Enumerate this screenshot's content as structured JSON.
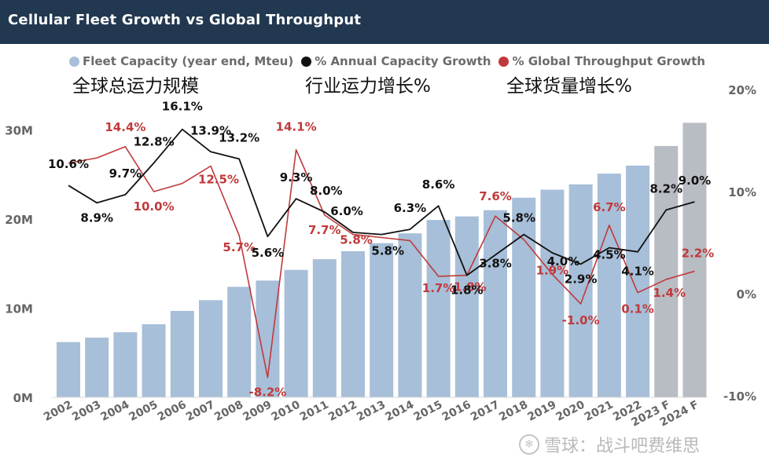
{
  "header": {
    "title": "Cellular Fleet Growth vs Global Throughput"
  },
  "legend": [
    {
      "label": "Fleet Capacity (year end, Mteu)",
      "color": "#a7bfd8"
    },
    {
      "label": "% Annual Capacity Growth",
      "color": "#111111"
    },
    {
      "label": "% Global Throughput Growth",
      "color": "#c0393b"
    }
  ],
  "annotations_cn": {
    "fleet": "全球总运力规模",
    "capacity_growth": "行业运力增长%",
    "throughput_growth": "全球货量增长%"
  },
  "watermark": {
    "text": "雪球：战斗吧费维思"
  },
  "colors": {
    "bar": "#a7bfd8",
    "bar_forecast": "#b8bcc3",
    "capacity_line": "#111111",
    "throughput_line": "#c0393b",
    "axis_text": "#666666",
    "title_bg": "#223850"
  },
  "chart_data": {
    "type": "bar",
    "title": "Cellular Fleet Growth vs Global Throughput",
    "categories": [
      "2002",
      "2003",
      "2004",
      "2005",
      "2006",
      "2007",
      "2008",
      "2009",
      "2010",
      "2011",
      "2012",
      "2013",
      "2014",
      "2015",
      "2016",
      "2017",
      "2018",
      "2019",
      "2020",
      "2021",
      "2022",
      "2023 F",
      "2024 F"
    ],
    "forecast_categories": [
      "2023 F",
      "2024 F"
    ],
    "left_axis": {
      "ticks": [
        "0M",
        "10M",
        "20M",
        "30M"
      ],
      "tick_values": [
        0,
        10,
        20,
        30
      ],
      "ylim": [
        0,
        32
      ]
    },
    "right_axis": {
      "ticks": [
        "-10%",
        "0%",
        "10%",
        "20%"
      ],
      "tick_values": [
        -10,
        0,
        10,
        20
      ],
      "ylim": [
        -10,
        20
      ]
    },
    "series": [
      {
        "name": "Fleet Capacity (year end, Mteu)",
        "kind": "bar",
        "axis": "left",
        "values": [
          6.2,
          6.7,
          7.3,
          8.2,
          9.7,
          10.9,
          12.4,
          13.1,
          14.3,
          15.5,
          16.4,
          17.3,
          18.4,
          19.9,
          20.3,
          21.0,
          22.4,
          23.3,
          23.9,
          25.1,
          26.0,
          28.2,
          30.8
        ]
      },
      {
        "name": "% Annual Capacity Growth",
        "kind": "line",
        "axis": "right",
        "values": [
          10.6,
          8.9,
          9.7,
          12.8,
          16.1,
          13.9,
          13.2,
          5.6,
          9.3,
          8.0,
          6.0,
          5.8,
          6.3,
          8.6,
          1.8,
          3.8,
          5.8,
          4.0,
          2.9,
          4.5,
          4.1,
          8.2,
          9.0
        ],
        "labels": [
          "10.6%",
          "8.9%",
          "9.7%",
          "12.8%",
          "16.1%",
          "13.9%",
          "13.2%",
          "5.6%",
          "9.3%",
          "8.0%",
          "6.0%",
          "5.8%",
          "6.3%",
          "8.6%",
          "1.8%",
          "3.8%",
          "5.8%",
          "4.0%",
          "2.9%",
          "4.5%",
          "4.1%",
          "8.2%",
          "9.0%"
        ]
      },
      {
        "name": "% Global Throughput Growth",
        "kind": "line",
        "axis": "right",
        "values": [
          12.8,
          13.3,
          14.4,
          10.0,
          10.8,
          12.5,
          5.7,
          -8.2,
          14.1,
          7.7,
          5.8,
          5.5,
          5.2,
          1.7,
          1.8,
          7.6,
          5.3,
          1.9,
          -1.0,
          6.7,
          0.1,
          1.4,
          2.2
        ],
        "labels": [
          "",
          "",
          "14.4%",
          "10.0%",
          "",
          "12.5%",
          "5.7%",
          "-8.2%",
          "14.1%",
          "7.7%",
          "5.8%",
          "",
          "",
          "1.7%",
          "1.8%",
          "7.6%",
          "",
          "1.9%",
          "-1.0%",
          "6.7%",
          "0.1%",
          "1.4%",
          "2.2%"
        ]
      }
    ]
  }
}
